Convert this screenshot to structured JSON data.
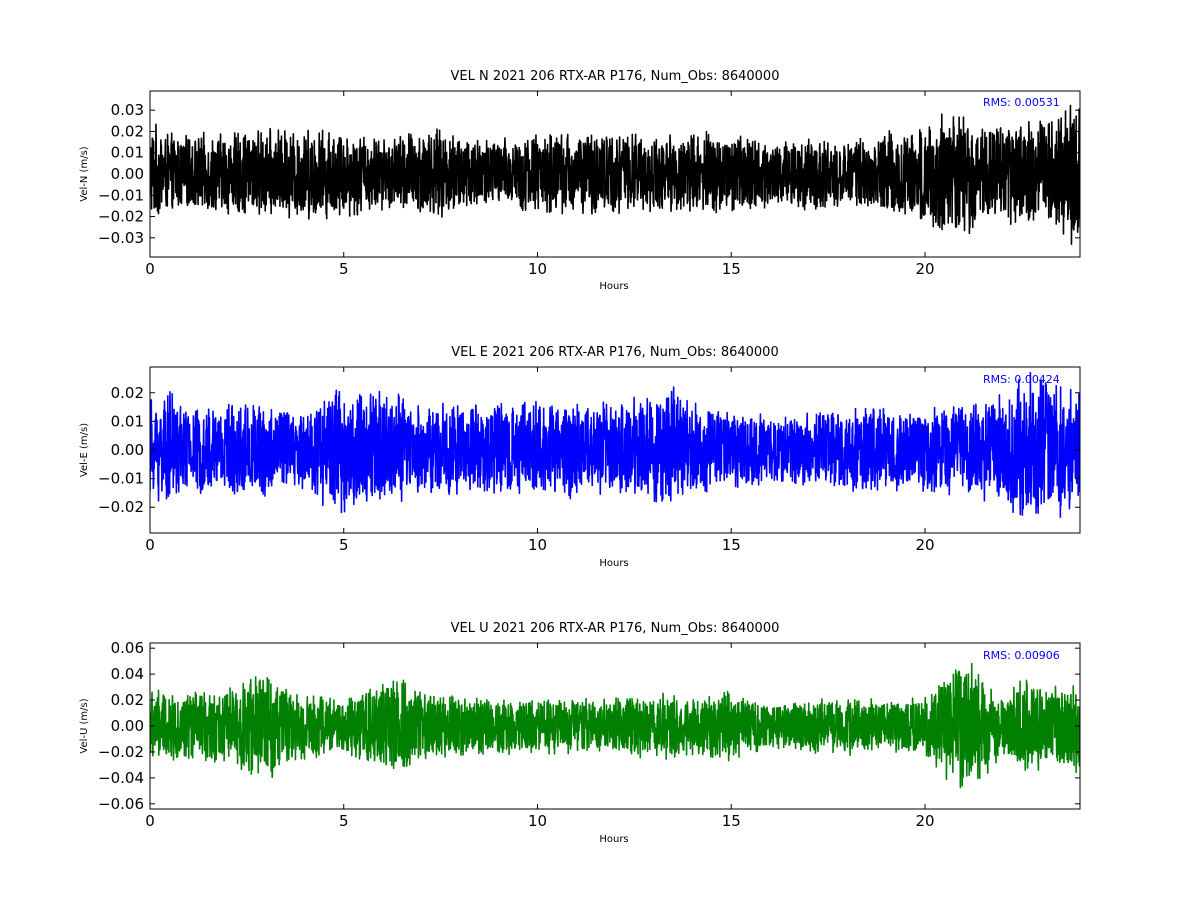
{
  "chart_data": [
    {
      "type": "line",
      "title": "VEL N 2021 206 RTX-AR  P176, Num_Obs: 8640000",
      "xlabel": "Hours",
      "ylabel": "Vel-N (m/s)",
      "xlim": [
        0,
        24
      ],
      "ylim": [
        -0.039,
        0.039
      ],
      "xticks": [
        0,
        5,
        10,
        15,
        20
      ],
      "xtick_labels": [
        "0",
        "5",
        "10",
        "15",
        "20"
      ],
      "yticks": [
        -0.03,
        -0.02,
        -0.01,
        0.0,
        0.01,
        0.02,
        0.03
      ],
      "ytick_labels": [
        "−0.03",
        "−0.02",
        "−0.01",
        "0.00",
        "0.01",
        "0.02",
        "0.03"
      ],
      "grid": false,
      "color": "#000000",
      "annotation": "RMS:  0.00531",
      "annotation_color": "#0000ff",
      "envelope": {
        "x": [
          0,
          0.5,
          1,
          2,
          3,
          4,
          5,
          6,
          7,
          8,
          9,
          10,
          11,
          12,
          13,
          14,
          15,
          16,
          17,
          18,
          19,
          20,
          20.5,
          21,
          21.5,
          22,
          23,
          24
        ],
        "upper": [
          0.024,
          0.018,
          0.017,
          0.019,
          0.02,
          0.021,
          0.02,
          0.016,
          0.021,
          0.019,
          0.016,
          0.019,
          0.019,
          0.02,
          0.017,
          0.019,
          0.019,
          0.016,
          0.015,
          0.014,
          0.019,
          0.022,
          0.03,
          0.031,
          0.02,
          0.022,
          0.025,
          0.034
        ],
        "lower": [
          -0.021,
          -0.017,
          -0.016,
          -0.018,
          -0.02,
          -0.02,
          -0.02,
          -0.016,
          -0.02,
          -0.018,
          -0.015,
          -0.018,
          -0.018,
          -0.018,
          -0.016,
          -0.018,
          -0.018,
          -0.015,
          -0.017,
          -0.013,
          -0.018,
          -0.022,
          -0.028,
          -0.031,
          -0.02,
          -0.022,
          -0.025,
          -0.033
        ]
      }
    },
    {
      "type": "line",
      "title": "VEL E 2021 206 RTX-AR  P176, Num_Obs: 8640000",
      "xlabel": "Hours",
      "ylabel": "Vel-E (m/s)",
      "xlim": [
        0,
        24
      ],
      "ylim": [
        -0.029,
        0.029
      ],
      "xticks": [
        0,
        5,
        10,
        15,
        20
      ],
      "xtick_labels": [
        "0",
        "5",
        "10",
        "15",
        "20"
      ],
      "yticks": [
        -0.02,
        -0.01,
        0.0,
        0.01,
        0.02
      ],
      "ytick_labels": [
        "−0.02",
        "−0.01",
        "0.00",
        "0.01",
        "0.02"
      ],
      "grid": false,
      "color": "#0000ff",
      "annotation": "RMS:  0.00424",
      "annotation_color": "#0000ff",
      "envelope": {
        "x": [
          0,
          0.5,
          1,
          2,
          3,
          4,
          4.5,
          5,
          6,
          7,
          8,
          9,
          10,
          11,
          12,
          13,
          13.5,
          14,
          15,
          16,
          17,
          18,
          19,
          20,
          21,
          22,
          22.5,
          23,
          24
        ],
        "upper": [
          0.017,
          0.02,
          0.014,
          0.016,
          0.016,
          0.013,
          0.02,
          0.021,
          0.02,
          0.016,
          0.016,
          0.015,
          0.017,
          0.016,
          0.016,
          0.018,
          0.021,
          0.016,
          0.013,
          0.011,
          0.013,
          0.015,
          0.014,
          0.014,
          0.016,
          0.018,
          0.027,
          0.026,
          0.019
        ],
        "lower": [
          -0.017,
          -0.018,
          -0.014,
          -0.015,
          -0.016,
          -0.013,
          -0.019,
          -0.021,
          -0.019,
          -0.016,
          -0.015,
          -0.014,
          -0.016,
          -0.016,
          -0.015,
          -0.018,
          -0.02,
          -0.016,
          -0.013,
          -0.011,
          -0.012,
          -0.014,
          -0.014,
          -0.014,
          -0.016,
          -0.018,
          -0.025,
          -0.025,
          -0.019
        ]
      }
    },
    {
      "type": "line",
      "title": "VEL U 2021 206 RTX-AR  P176, Num_Obs: 8640000",
      "xlabel": "Hours",
      "ylabel": "Vel-U (m/s)",
      "xlim": [
        0,
        24
      ],
      "ylim": [
        -0.064,
        0.064
      ],
      "xticks": [
        0,
        5,
        10,
        15,
        20
      ],
      "xtick_labels": [
        "0",
        "5",
        "10",
        "15",
        "20"
      ],
      "yticks": [
        -0.06,
        -0.04,
        -0.02,
        0.0,
        0.02,
        0.04,
        0.06
      ],
      "ytick_labels": [
        "−0.06",
        "−0.04",
        "−0.02",
        "0.00",
        "0.02",
        "0.04",
        "0.06"
      ],
      "grid": false,
      "color": "#008000",
      "annotation": "RMS:  0.00906",
      "annotation_color": "#0000ff",
      "envelope": {
        "x": [
          0,
          0.5,
          1,
          2,
          3,
          3.5,
          4,
          5,
          5.5,
          6,
          6.5,
          7,
          8,
          9,
          10,
          11,
          12,
          13,
          14,
          15,
          16,
          17,
          18,
          19,
          20,
          20.5,
          21,
          21.5,
          22,
          22.5,
          23,
          24
        ],
        "upper": [
          0.028,
          0.024,
          0.025,
          0.027,
          0.042,
          0.03,
          0.025,
          0.02,
          0.03,
          0.033,
          0.034,
          0.025,
          0.022,
          0.021,
          0.02,
          0.022,
          0.02,
          0.024,
          0.022,
          0.026,
          0.016,
          0.02,
          0.022,
          0.018,
          0.022,
          0.038,
          0.05,
          0.038,
          0.024,
          0.035,
          0.03,
          0.034
        ],
        "lower": [
          -0.028,
          -0.025,
          -0.026,
          -0.028,
          -0.045,
          -0.031,
          -0.026,
          -0.02,
          -0.032,
          -0.033,
          -0.035,
          -0.025,
          -0.022,
          -0.021,
          -0.02,
          -0.022,
          -0.02,
          -0.025,
          -0.022,
          -0.026,
          -0.016,
          -0.02,
          -0.022,
          -0.018,
          -0.022,
          -0.04,
          -0.055,
          -0.04,
          -0.024,
          -0.035,
          -0.032,
          -0.034
        ]
      }
    }
  ]
}
